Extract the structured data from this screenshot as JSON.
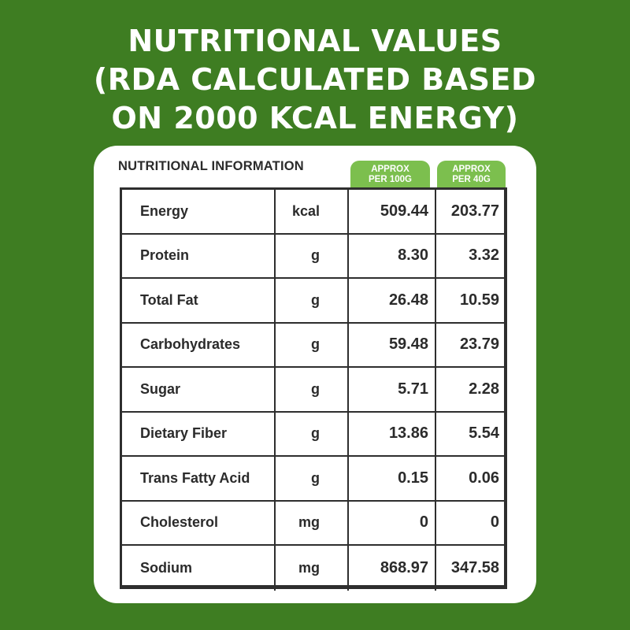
{
  "heading": {
    "line1": "NUTRITIONAL VALUES",
    "line2": "(RDA CALCULATED BASED",
    "line3": "ON 2000 KCAL ENERGY)"
  },
  "panel": {
    "title": "NUTRITIONAL INFORMATION",
    "col_100_line1": "APPROX",
    "col_100_line2": "PER 100G",
    "col_40_line1": "APPROX",
    "col_40_line2": "PER 40G"
  },
  "rows": [
    {
      "name": "Energy",
      "unit": "kcal",
      "per100": "509.44",
      "per40": "203.77"
    },
    {
      "name": "Protein",
      "unit": "g",
      "per100": "8.30",
      "per40": "3.32"
    },
    {
      "name": "Total Fat",
      "unit": "g",
      "per100": "26.48",
      "per40": "10.59"
    },
    {
      "name": "Carbohydrates",
      "unit": "g",
      "per100": "59.48",
      "per40": "23.79"
    },
    {
      "name": "Sugar",
      "unit": "g",
      "per100": "5.71",
      "per40": "2.28"
    },
    {
      "name": "Dietary Fiber",
      "unit": "g",
      "per100": "13.86",
      "per40": "5.54"
    },
    {
      "name": "Trans Fatty Acid",
      "unit": "g",
      "per100": "0.15",
      "per40": "0.06"
    },
    {
      "name": "Cholesterol",
      "unit": "mg",
      "per100": "0",
      "per40": "0"
    },
    {
      "name": "Sodium",
      "unit": "mg",
      "per100": "868.97",
      "per40": "347.58"
    }
  ],
  "colors": {
    "background": "#3e7d22",
    "tab": "#7cbf4e",
    "card": "#ffffff",
    "text": "#2b2b2b"
  }
}
